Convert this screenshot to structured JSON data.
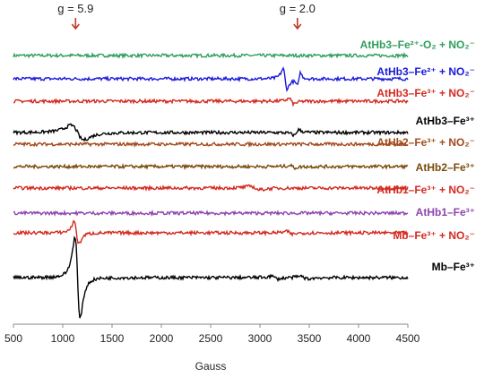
{
  "chart_data": {
    "type": "line",
    "xlabel": "Gauss",
    "xlim": [
      500,
      4500
    ],
    "x_ticks": [
      500,
      1000,
      1500,
      2000,
      2500,
      3000,
      3500,
      4000,
      4500
    ],
    "markers": [
      {
        "label": "g = 5.9",
        "x": 1130,
        "color": "#c0392b"
      },
      {
        "label": "g = 2.0",
        "x": 3380,
        "color": "#c0392b"
      }
    ],
    "series": [
      {
        "name": "AtHb3–Fe²⁺-O₂ + NO₂⁻",
        "color": "#2e9e5b",
        "offset": 10,
        "features": []
      },
      {
        "name": "AtHb3–Fe²⁺ + NO₂⁻",
        "color": "#1a1adb",
        "offset": 9,
        "features": [
          {
            "type": "deriv",
            "x": 3255,
            "w": 35,
            "a": 2.2
          },
          {
            "type": "deriv",
            "x": 3395,
            "w": 25,
            "a": -1.4
          }
        ]
      },
      {
        "name": "AtHb3–Fe³⁺ + NO₂⁻",
        "color": "#d42a20",
        "offset": 8,
        "features": [
          {
            "type": "deriv",
            "x": 3320,
            "w": 40,
            "a": 0.6
          }
        ]
      },
      {
        "name": "AtHb3–Fe³⁺",
        "color": "#000000",
        "offset": 7,
        "features": [
          {
            "type": "deriv",
            "x": 1150,
            "w": 110,
            "a": 1.6
          },
          {
            "type": "deriv",
            "x": 3370,
            "w": 40,
            "a": -0.6
          }
        ]
      },
      {
        "name": "AtHb2–Fe³⁺ + NO₂⁻",
        "color": "#a34a1c",
        "offset": 6,
        "features": []
      },
      {
        "name": "AtHb2–Fe³⁺",
        "color": "#7a4a0a",
        "offset": 5,
        "features": [
          {
            "type": "deriv",
            "x": 3330,
            "w": 40,
            "a": 0.3
          }
        ]
      },
      {
        "name": "AtHb1–Fe³⁺ + NO₂⁻",
        "color": "#d42a20",
        "offset": 4,
        "features": [
          {
            "type": "deriv",
            "x": 2950,
            "w": 80,
            "a": 0.4
          }
        ]
      },
      {
        "name": "AtHb1–Fe³⁺",
        "color": "#8e44ad",
        "offset": 3,
        "features": []
      },
      {
        "name": "Mb–Fe³⁺ + NO₂⁻",
        "color": "#d42a20",
        "offset": 2,
        "features": [
          {
            "type": "deriv",
            "x": 1140,
            "w": 40,
            "a": 2.5
          },
          {
            "type": "deriv",
            "x": 3300,
            "w": 50,
            "a": 0.3
          }
        ]
      },
      {
        "name": "Mb–Fe³⁺",
        "color": "#000000",
        "offset": 0,
        "features": [
          {
            "type": "deriv",
            "x": 1150,
            "w": 45,
            "a": 9.0
          },
          {
            "type": "deriv",
            "x": 3150,
            "w": 60,
            "a": 0.3
          },
          {
            "type": "deriv",
            "x": 3450,
            "w": 60,
            "a": 0.3
          }
        ]
      }
    ],
    "legend": "inline-right",
    "grid": false
  }
}
